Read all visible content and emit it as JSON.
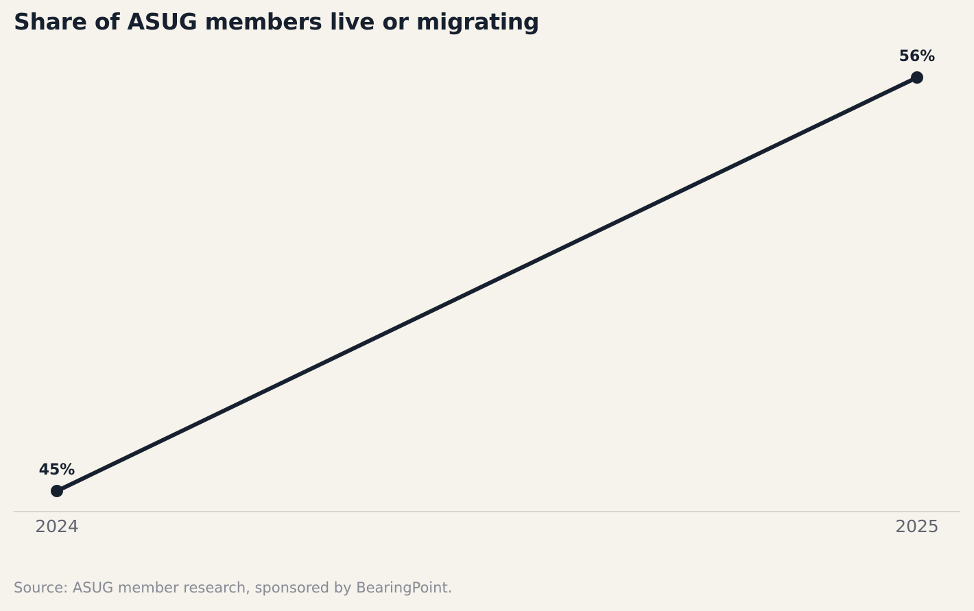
{
  "chart_data": {
    "type": "line",
    "title": "Share of ASUG members live or migrating",
    "xlabel": "",
    "ylabel": "",
    "x": [
      "2024",
      "2025"
    ],
    "series": [
      {
        "values": [
          45,
          56
        ],
        "labels": [
          "45%",
          "56%"
        ]
      }
    ],
    "ylim": [
      45,
      56
    ],
    "grid": false,
    "legend": "none",
    "colors": {
      "line": "#16202e",
      "axis": "#d9d5cc",
      "tick_text": "#5f6470",
      "background": "#f6f2ec"
    }
  },
  "footer": {
    "source": "Source: ASUG member research, sponsored by BearingPoint."
  }
}
